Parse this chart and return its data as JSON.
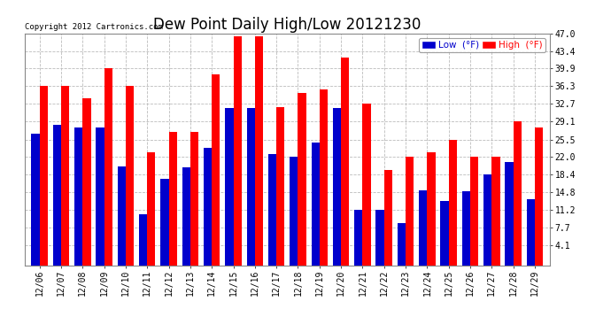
{
  "title": "Dew Point Daily High/Low 20121230",
  "copyright": "Copyright 2012 Cartronics.com",
  "dates": [
    "12/06",
    "12/07",
    "12/08",
    "12/09",
    "12/10",
    "12/11",
    "12/12",
    "12/13",
    "12/14",
    "12/15",
    "12/16",
    "12/17",
    "12/18",
    "12/19",
    "12/20",
    "12/21",
    "12/22",
    "12/23",
    "12/24",
    "12/25",
    "12/26",
    "12/27",
    "12/28",
    "12/29"
  ],
  "high": [
    36.3,
    36.3,
    33.8,
    39.9,
    36.3,
    23.0,
    27.0,
    27.0,
    38.7,
    46.4,
    46.4,
    32.0,
    34.9,
    35.6,
    42.1,
    32.7,
    19.4,
    22.0,
    22.9,
    25.5,
    22.0,
    22.0,
    29.1,
    27.9
  ],
  "low": [
    26.6,
    28.4,
    27.9,
    27.9,
    20.0,
    10.4,
    17.6,
    19.8,
    23.9,
    31.8,
    31.8,
    22.5,
    22.0,
    24.8,
    31.8,
    11.2,
    11.2,
    8.6,
    15.3,
    13.0,
    15.0,
    18.4,
    21.0,
    13.5
  ],
  "high_color": "#ff0000",
  "low_color": "#0000cc",
  "bg_color": "#ffffff",
  "plot_bg_color": "#ffffff",
  "grid_color": "#bbbbbb",
  "yticks": [
    4.1,
    7.7,
    11.2,
    14.8,
    18.4,
    22.0,
    25.5,
    29.1,
    32.7,
    36.3,
    39.9,
    43.4,
    47.0
  ],
  "ymin": 4.1,
  "ymax": 47.0,
  "bar_width": 0.38,
  "title_fontsize": 12,
  "tick_fontsize": 7,
  "legend_fontsize": 7.5,
  "copyright_fontsize": 6.5
}
